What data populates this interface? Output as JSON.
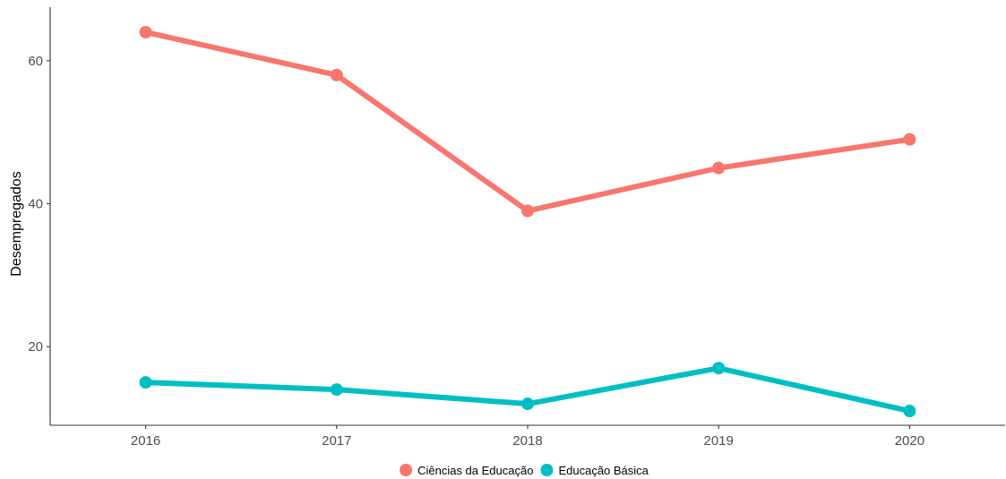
{
  "chart_data": {
    "type": "line",
    "title": "",
    "xlabel": "",
    "ylabel": "Desempregados",
    "x": [
      2016,
      2017,
      2018,
      2019,
      2020
    ],
    "x_ticks": [
      "2016",
      "2017",
      "2018",
      "2019",
      "2020"
    ],
    "xlim": [
      2015.5,
      2020.5
    ],
    "y_ticks": [
      20,
      40,
      60
    ],
    "ylim": [
      9.0,
      67.5
    ],
    "grid": false,
    "legend_position": "bottom",
    "series": [
      {
        "name": "Ciências da Educação",
        "color": "#F8766D",
        "values": [
          64,
          58,
          39,
          45,
          49
        ]
      },
      {
        "name": "Educação Básica",
        "color": "#00BFC4",
        "values": [
          15,
          14,
          12,
          17,
          11
        ]
      }
    ]
  }
}
